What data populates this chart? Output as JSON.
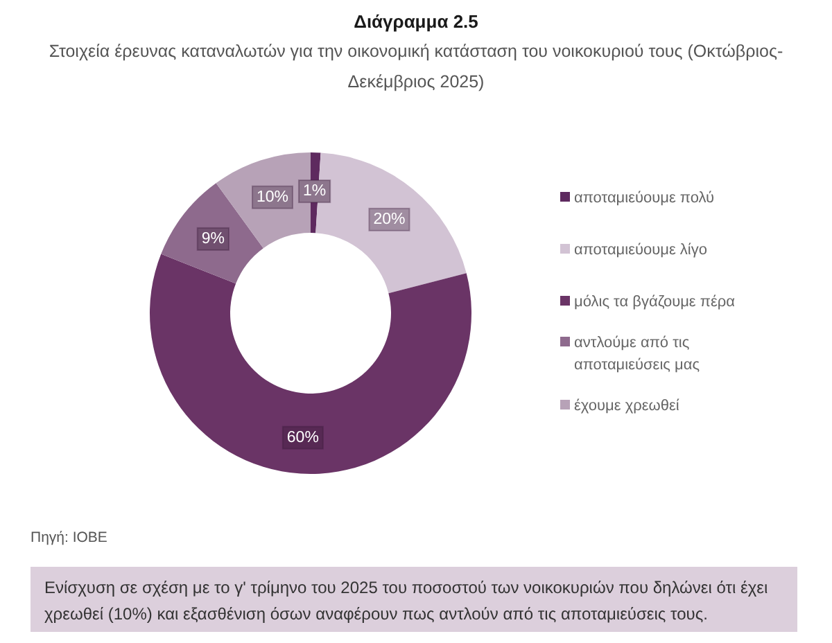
{
  "chart_data": {
    "type": "donut",
    "title": "Διάγραμμα 2.5",
    "subtitle": "Στοιχεία έρευνας καταναλωτών για την οικονομική κατάσταση του νοικοκυριού τους (Οκτώβριος-Δεκέμβριος 2025)",
    "categories": [
      "αποταμιεύουμε πολύ",
      "αποταμιεύουμε λίγο",
      "μόλις τα βγάζουμε πέρα",
      "αντλούμε από τις αποταμιεύσεις μας",
      "έχουμε χρεωθεί"
    ],
    "values": [
      1,
      20,
      60,
      9,
      10
    ],
    "colors": [
      "#5e2a5f",
      "#d2c3d4",
      "#6a3466",
      "#8e6a8d",
      "#b7a2b7"
    ],
    "value_labels": [
      "1%",
      "20%",
      "60%",
      "9%",
      "10%"
    ],
    "legend": "right",
    "annotations": [
      "Πηγή: ΙΟΒΕ",
      "Ενίσχυση σε σχέση με το γ' τρίμηνο του 2025 του ποσοστού των νοικοκυριών που δηλώνει ότι έχει χρεωθεί (10%) και εξασθένιση όσων αναφέρουν πως αντλούν από τις αποταμιεύσεις τους."
    ]
  }
}
